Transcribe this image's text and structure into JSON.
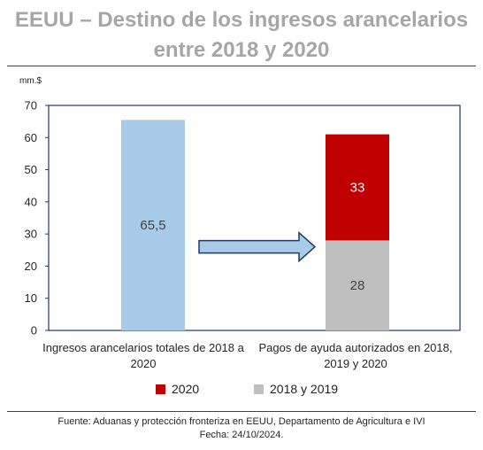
{
  "title_line1": "EEUU – Destino de los ingresos arancelarios",
  "title_line2": "entre 2018 y 2020",
  "chart_data": {
    "type": "bar",
    "unit_label": "mm.$",
    "categories": [
      "Ingresos arancelarios totales de 2018 a 2020",
      "Pagos de ayuda autorizados en 2018, 2019 y 2020"
    ],
    "category_lines": [
      [
        "Ingresos arancelarios totales de 2018 a",
        "2020"
      ],
      [
        "Pagos de ayuda autorizados en 2018,",
        "2019 y 2020"
      ]
    ],
    "bars": [
      {
        "category": 0,
        "value": 65.5,
        "label": "65,5",
        "color": "#a9cbea"
      }
    ],
    "series": [
      {
        "name": "2018 y 2019",
        "values": [
          null,
          28
        ],
        "labels": [
          "",
          "28"
        ],
        "color": "#bfbfbf"
      },
      {
        "name": "2020",
        "values": [
          null,
          33
        ],
        "labels": [
          "",
          "33"
        ],
        "color": "#c00000"
      }
    ],
    "yticks": [
      "0",
      "10",
      "20",
      "30",
      "40",
      "50",
      "60",
      "70"
    ],
    "ylim": [
      0,
      70
    ],
    "legend": [
      {
        "label": "2020",
        "color": "#c00000"
      },
      {
        "label": "2018 y 2019",
        "color": "#bfbfbf"
      }
    ],
    "legend_position": "bottom",
    "annotation": "arrow from first bar to second bar",
    "grid": false
  },
  "source_line1": "Fuente: Aduanas y protección fronteriza en EEUU, Departamento de Agricultura e IVI",
  "source_line2": "Fecha: 24/10/2024."
}
